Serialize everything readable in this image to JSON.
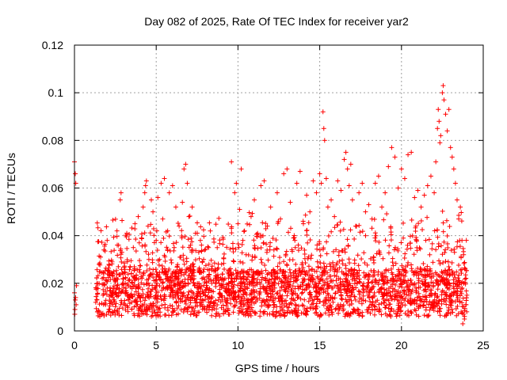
{
  "chart_data": {
    "type": "scatter",
    "title": "Day 082 of 2025, Rate Of TEC Index for receiver yar2",
    "xlabel": "GPS time / hours",
    "ylabel": "ROTI / TECUs",
    "xlim": [
      0,
      25
    ],
    "ylim": [
      0,
      0.12
    ],
    "xticks": [
      0,
      5,
      10,
      15,
      20,
      25
    ],
    "xtick_labels": [
      "0",
      "5",
      "10",
      "15",
      "20",
      "25"
    ],
    "yticks": [
      0,
      0.02,
      0.04,
      0.06,
      0.08,
      0.1,
      0.12
    ],
    "ytick_labels": [
      "0",
      "0.02",
      "0.04",
      "0.06",
      "0.08",
      "0.1",
      "0.12"
    ],
    "grid": true,
    "marker": "+",
    "color": "#ff0000",
    "series": [
      {
        "name": "ROTI",
        "points": [
          [
            0.0,
            0.071
          ],
          [
            0.05,
            0.066
          ],
          [
            0.08,
            0.062
          ],
          [
            0.0,
            0.016
          ],
          [
            0.05,
            0.013
          ],
          [
            0.1,
            0.011
          ],
          [
            0.03,
            0.009
          ],
          [
            0.07,
            0.014
          ],
          [
            0.12,
            0.019
          ],
          [
            0.02,
            0.007
          ],
          [
            1.3,
            0.012
          ],
          [
            1.35,
            0.018
          ],
          [
            1.4,
            0.008
          ],
          [
            1.5,
            0.028
          ],
          [
            1.55,
            0.006
          ],
          [
            1.6,
            0.031
          ],
          [
            1.7,
            0.022
          ],
          [
            1.75,
            0.015
          ],
          [
            1.8,
            0.034
          ],
          [
            1.9,
            0.011
          ],
          [
            2.0,
            0.038
          ],
          [
            2.1,
            0.025
          ],
          [
            2.2,
            0.017
          ],
          [
            2.3,
            0.029
          ],
          [
            2.4,
            0.013
          ],
          [
            2.5,
            0.021
          ],
          [
            2.6,
            0.042
          ],
          [
            2.7,
            0.036
          ],
          [
            2.8,
            0.055
          ],
          [
            2.85,
            0.058
          ],
          [
            2.9,
            0.033
          ],
          [
            3.0,
            0.024
          ],
          [
            3.1,
            0.016
          ],
          [
            3.2,
            0.041
          ],
          [
            3.3,
            0.019
          ],
          [
            3.4,
            0.027
          ],
          [
            3.5,
            0.012
          ],
          [
            3.6,
            0.035
          ],
          [
            3.7,
            0.045
          ],
          [
            3.8,
            0.022
          ],
          [
            3.9,
            0.048
          ],
          [
            4.0,
            0.014
          ],
          [
            4.1,
            0.039
          ],
          [
            4.2,
            0.052
          ],
          [
            4.3,
            0.058
          ],
          [
            4.35,
            0.061
          ],
          [
            4.4,
            0.063
          ],
          [
            4.5,
            0.044
          ],
          [
            4.6,
            0.026
          ],
          [
            4.7,
            0.055
          ],
          [
            4.8,
            0.05
          ],
          [
            4.9,
            0.018
          ],
          [
            5.0,
            0.038
          ],
          [
            5.1,
            0.056
          ],
          [
            5.2,
            0.03
          ],
          [
            5.3,
            0.062
          ],
          [
            5.4,
            0.047
          ],
          [
            5.5,
            0.064
          ],
          [
            5.6,
            0.025
          ],
          [
            5.7,
            0.042
          ],
          [
            5.8,
            0.058
          ],
          [
            5.9,
            0.016
          ],
          [
            6.0,
            0.061
          ],
          [
            6.1,
            0.035
          ],
          [
            6.2,
            0.052
          ],
          [
            6.3,
            0.02
          ],
          [
            6.4,
            0.044
          ],
          [
            6.5,
            0.031
          ],
          [
            6.6,
            0.054
          ],
          [
            6.7,
            0.068
          ],
          [
            6.8,
            0.07
          ],
          [
            6.9,
            0.062
          ],
          [
            7.0,
            0.048
          ],
          [
            7.1,
            0.036
          ],
          [
            7.2,
            0.052
          ],
          [
            7.3,
            0.027
          ],
          [
            7.4,
            0.041
          ],
          [
            7.5,
            0.018
          ],
          [
            7.6,
            0.033
          ],
          [
            7.7,
            0.038
          ],
          [
            7.8,
            0.022
          ],
          [
            7.9,
            0.03
          ],
          [
            8.0,
            0.015
          ],
          [
            8.2,
            0.035
          ],
          [
            8.4,
            0.02
          ],
          [
            8.6,
            0.026
          ],
          [
            8.8,
            0.013
          ],
          [
            9.0,
            0.028
          ],
          [
            9.2,
            0.022
          ],
          [
            9.4,
            0.016
          ],
          [
            9.6,
            0.071
          ],
          [
            9.8,
            0.058
          ],
          [
            9.9,
            0.062
          ],
          [
            10.0,
            0.045
          ],
          [
            10.1,
            0.051
          ],
          [
            10.2,
            0.068
          ],
          [
            10.3,
            0.038
          ],
          [
            10.4,
            0.042
          ],
          [
            10.5,
            0.032
          ],
          [
            10.6,
            0.025
          ],
          [
            10.8,
            0.048
          ],
          [
            11.0,
            0.055
          ],
          [
            11.2,
            0.041
          ],
          [
            11.4,
            0.061
          ],
          [
            11.6,
            0.063
          ],
          [
            11.8,
            0.044
          ],
          [
            12.0,
            0.052
          ],
          [
            12.2,
            0.034
          ],
          [
            12.4,
            0.058
          ],
          [
            12.6,
            0.047
          ],
          [
            12.8,
            0.066
          ],
          [
            13.0,
            0.068
          ],
          [
            13.2,
            0.054
          ],
          [
            13.4,
            0.039
          ],
          [
            13.6,
            0.062
          ],
          [
            13.8,
            0.067
          ],
          [
            14.0,
            0.045
          ],
          [
            14.2,
            0.057
          ],
          [
            14.4,
            0.05
          ],
          [
            14.6,
            0.063
          ],
          [
            14.8,
            0.058
          ],
          [
            15.0,
            0.066
          ],
          [
            15.1,
            0.062
          ],
          [
            15.2,
            0.092
          ],
          [
            15.25,
            0.085
          ],
          [
            15.3,
            0.08
          ],
          [
            15.4,
            0.064
          ],
          [
            15.5,
            0.052
          ],
          [
            15.7,
            0.055
          ],
          [
            15.9,
            0.048
          ],
          [
            16.1,
            0.063
          ],
          [
            16.3,
            0.059
          ],
          [
            16.5,
            0.072
          ],
          [
            16.6,
            0.075
          ],
          [
            16.7,
            0.068
          ],
          [
            16.8,
            0.061
          ],
          [
            16.9,
            0.07
          ],
          [
            17.0,
            0.055
          ],
          [
            17.2,
            0.044
          ],
          [
            17.4,
            0.058
          ],
          [
            17.6,
            0.062
          ],
          [
            17.8,
            0.05
          ],
          [
            18.0,
            0.053
          ],
          [
            18.2,
            0.047
          ],
          [
            18.4,
            0.062
          ],
          [
            18.6,
            0.065
          ],
          [
            18.8,
            0.052
          ],
          [
            19.0,
            0.058
          ],
          [
            19.2,
            0.069
          ],
          [
            19.4,
            0.077
          ],
          [
            19.6,
            0.073
          ],
          [
            19.8,
            0.06
          ],
          [
            20.0,
            0.068
          ],
          [
            20.2,
            0.064
          ],
          [
            20.4,
            0.074
          ],
          [
            20.6,
            0.075
          ],
          [
            20.8,
            0.056
          ],
          [
            21.0,
            0.059
          ],
          [
            21.2,
            0.052
          ],
          [
            21.4,
            0.057
          ],
          [
            21.6,
            0.061
          ],
          [
            21.8,
            0.065
          ],
          [
            22.0,
            0.058
          ],
          [
            22.1,
            0.071
          ],
          [
            22.2,
            0.085
          ],
          [
            22.25,
            0.093
          ],
          [
            22.3,
            0.088
          ],
          [
            22.35,
            0.079
          ],
          [
            22.4,
            0.082
          ],
          [
            22.5,
            0.1
          ],
          [
            22.55,
            0.103
          ],
          [
            22.6,
            0.097
          ],
          [
            22.7,
            0.091
          ],
          [
            22.8,
            0.084
          ],
          [
            22.9,
            0.093
          ],
          [
            23.0,
            0.077
          ],
          [
            23.1,
            0.073
          ],
          [
            23.2,
            0.068
          ],
          [
            23.3,
            0.062
          ],
          [
            23.4,
            0.055
          ],
          [
            23.5,
            0.047
          ],
          [
            23.6,
            0.052
          ],
          [
            23.7,
            0.038
          ],
          [
            23.8,
            0.032
          ],
          [
            23.9,
            0.026
          ],
          [
            24.0,
            0.015
          ],
          [
            23.95,
            0.011
          ],
          [
            23.85,
            0.005
          ],
          [
            23.75,
            0.003
          ],
          [
            23.65,
            0.008
          ]
        ]
      }
    ]
  }
}
